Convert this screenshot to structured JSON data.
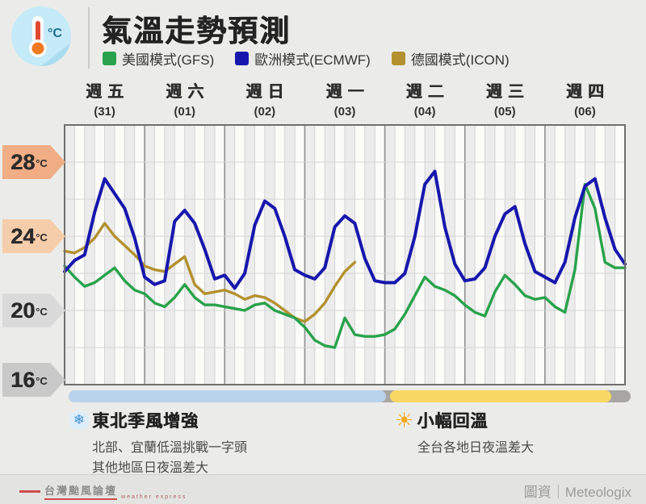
{
  "header": {
    "title": "氣溫走勢預測",
    "icon_unit": "°C",
    "legend": [
      {
        "label": "美國模式(GFS)",
        "color": "#29a24b"
      },
      {
        "label": "歐洲模式(ECMWF)",
        "color": "#1717ad"
      },
      {
        "label": "德國模式(ICON)",
        "color": "#b3912f"
      }
    ]
  },
  "chart_data": {
    "type": "line",
    "title": "氣溫走勢預測",
    "unit": "°C",
    "ylim": [
      16,
      30
    ],
    "grid": true,
    "hours_per_point": 3,
    "points_per_day": 8,
    "x_day_labels": [
      {
        "day": "週五",
        "date": "(31)"
      },
      {
        "day": "週六",
        "date": "(01)"
      },
      {
        "day": "週日",
        "date": "(02)"
      },
      {
        "day": "週一",
        "date": "(03)"
      },
      {
        "day": "週二",
        "date": "(04)"
      },
      {
        "day": "週三",
        "date": "(05)"
      },
      {
        "day": "週四",
        "date": "(06)"
      }
    ],
    "yticks": [
      {
        "value": "28",
        "color": "#f1ad84"
      },
      {
        "value": "24",
        "color": "#f6cdaa"
      },
      {
        "value": "20",
        "color": "#dadada"
      },
      {
        "value": "16",
        "color": "#c9c9c9"
      }
    ],
    "series": [
      {
        "name": "德國模式(ICON)",
        "color": "#b3912f",
        "values": [
          23.2,
          23.1,
          23.4,
          23.9,
          24.7,
          24.0,
          23.5,
          23.0,
          22.4,
          22.2,
          22.1,
          22.5,
          22.9,
          21.4,
          20.9,
          21.0,
          21.1,
          20.9,
          20.6,
          20.8,
          20.7,
          20.4,
          20.0,
          19.6,
          19.4,
          19.8,
          20.4,
          21.3,
          22.1,
          22.6
        ]
      },
      {
        "name": "美國模式(GFS)",
        "color": "#29a24b",
        "values": [
          22.4,
          21.8,
          21.3,
          21.5,
          21.9,
          22.3,
          21.6,
          21.1,
          20.9,
          20.4,
          20.2,
          20.7,
          21.4,
          20.7,
          20.3,
          20.3,
          20.2,
          20.1,
          20.0,
          20.3,
          20.4,
          20.0,
          19.8,
          19.6,
          19.1,
          18.4,
          18.1,
          18.0,
          19.6,
          18.7,
          18.6,
          18.6,
          18.7,
          19.0,
          19.8,
          20.8,
          21.8,
          21.3,
          21.1,
          20.8,
          20.3,
          19.9,
          19.7,
          21.0,
          21.9,
          21.4,
          20.8,
          20.6,
          20.7,
          20.2,
          19.9,
          22.2,
          26.8,
          25.5,
          22.6,
          22.3,
          22.3
        ]
      },
      {
        "name": "歐洲模式(ECMWF)",
        "color": "#1717ad",
        "values": [
          22.1,
          22.7,
          23.0,
          25.3,
          27.1,
          26.3,
          25.5,
          23.9,
          21.8,
          21.4,
          21.6,
          24.8,
          25.4,
          24.7,
          23.3,
          21.7,
          21.9,
          21.2,
          22.0,
          24.6,
          25.9,
          25.5,
          24.0,
          22.2,
          21.9,
          21.7,
          22.3,
          24.5,
          25.1,
          24.7,
          22.8,
          21.6,
          21.5,
          21.5,
          22.0,
          24.0,
          26.8,
          27.5,
          24.5,
          22.5,
          21.6,
          21.7,
          22.3,
          24.0,
          25.2,
          25.6,
          23.6,
          22.1,
          21.8,
          21.5,
          22.6,
          25.0,
          26.7,
          27.1,
          25.0,
          23.3,
          22.5
        ]
      }
    ]
  },
  "timeline_bar": {
    "track_color": "#a8a6a3",
    "segments": [
      {
        "name": "northeast-monsoon",
        "color": "#b9d3ec"
      },
      {
        "name": "rewarming",
        "color": "#f9d765"
      }
    ]
  },
  "notes": {
    "left": {
      "icon": "snowflake-icon",
      "title": "東北季風增強",
      "lines": [
        "北部、宜蘭低溫挑戰一字頭",
        "其他地區日夜溫差大"
      ]
    },
    "right": {
      "icon": "sun-icon",
      "title": "小幅回溫",
      "lines": [
        "全台各地日夜溫差大"
      ]
    }
  },
  "footer": {
    "brand": "台灣颱風論壇",
    "brand_sub": "weather express",
    "credit": "圖資｜Meteologix"
  }
}
